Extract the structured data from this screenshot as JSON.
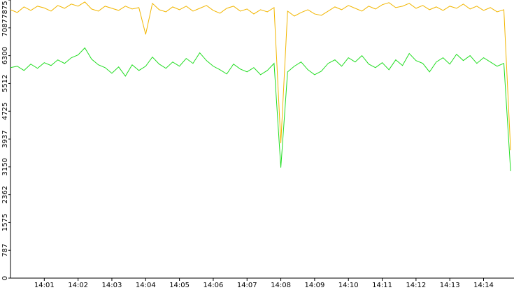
{
  "chart_data": {
    "type": "line",
    "x": [
      0,
      0.2,
      0.4,
      0.6,
      0.8,
      1,
      1.2,
      1.4,
      1.6,
      1.8,
      2,
      2.2,
      2.4,
      2.6,
      2.8,
      3,
      3.2,
      3.4,
      3.6,
      3.8,
      4,
      4.2,
      4.4,
      4.6,
      4.8,
      5,
      5.2,
      5.4,
      5.6,
      5.8,
      6,
      6.2,
      6.4,
      6.6,
      6.8,
      7,
      7.2,
      7.4,
      7.6,
      7.8,
      8,
      8.2,
      8.4,
      8.6,
      8.8,
      9,
      9.2,
      9.4,
      9.6,
      9.8,
      10,
      10.2,
      10.4,
      10.6,
      10.8,
      11,
      11.2,
      11.4,
      11.6,
      11.8,
      12,
      12.2,
      12.4,
      12.6,
      12.8,
      13,
      13.2,
      13.4,
      13.6,
      13.8,
      14,
      14.2,
      14.4,
      14.6,
      14.8
    ],
    "series": [
      {
        "color": "#f2b600",
        "values": [
          7600,
          7520,
          7680,
          7580,
          7700,
          7650,
          7560,
          7720,
          7640,
          7760,
          7700,
          7820,
          7620,
          7560,
          7700,
          7640,
          7580,
          7700,
          7620,
          7660,
          6900,
          7780,
          7600,
          7540,
          7680,
          7600,
          7700,
          7560,
          7640,
          7720,
          7580,
          7500,
          7640,
          7700,
          7560,
          7620,
          7480,
          7600,
          7540,
          7660,
          3820,
          7560,
          7420,
          7520,
          7600,
          7480,
          7440,
          7560,
          7680,
          7600,
          7720,
          7640,
          7560,
          7700,
          7620,
          7740,
          7800,
          7660,
          7700,
          7780,
          7640,
          7720,
          7600,
          7680,
          7580,
          7700,
          7640,
          7760,
          7620,
          7700,
          7580,
          7660,
          7540,
          7600,
          3620
        ]
      },
      {
        "color": "#22dd22",
        "values": [
          5960,
          6000,
          5880,
          6060,
          5940,
          6100,
          6020,
          6180,
          6080,
          6240,
          6320,
          6520,
          6200,
          6040,
          5960,
          5800,
          5980,
          5720,
          6040,
          5880,
          6000,
          6260,
          6060,
          5940,
          6120,
          6000,
          6220,
          6080,
          6380,
          6160,
          6000,
          5900,
          5780,
          6060,
          5920,
          5840,
          5960,
          5760,
          5880,
          6080,
          3130,
          5840,
          6000,
          6120,
          5900,
          5760,
          5860,
          6080,
          6180,
          6000,
          6240,
          6120,
          6300,
          6060,
          5960,
          6100,
          5900,
          6180,
          6020,
          6360,
          6160,
          6080,
          5840,
          6120,
          6240,
          6060,
          6340,
          6160,
          6300,
          6080,
          6240,
          6120,
          6000,
          6080,
          3030
        ]
      }
    ],
    "xlim": [
      0,
      14.9
    ],
    "xticks": [
      {
        "value": 1,
        "label": "14:01"
      },
      {
        "value": 2,
        "label": "14:02"
      },
      {
        "value": 3,
        "label": "14:03"
      },
      {
        "value": 4,
        "label": "14:04"
      },
      {
        "value": 5,
        "label": "14:05"
      },
      {
        "value": 6,
        "label": "14:06"
      },
      {
        "value": 7,
        "label": "14:07"
      },
      {
        "value": 8,
        "label": "14:08"
      },
      {
        "value": 9,
        "label": "14:09"
      },
      {
        "value": 10,
        "label": "14:10"
      },
      {
        "value": 11,
        "label": "14:11"
      },
      {
        "value": 12,
        "label": "14:12"
      },
      {
        "value": 13,
        "label": "14:13"
      },
      {
        "value": 14,
        "label": "14:14"
      }
    ],
    "ylim": [
      0,
      7875
    ],
    "yticks": [
      0,
      787,
      1575,
      2362,
      3150,
      3937,
      4725,
      5512,
      6300,
      7087,
      7875
    ]
  }
}
